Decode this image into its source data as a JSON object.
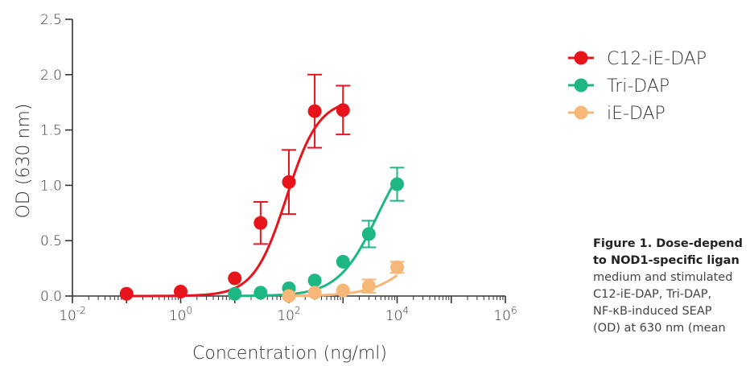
{
  "chart_data": {
    "type": "scatter",
    "xlabel": "Concentration (ng/ml)",
    "ylabel": "OD (630 nm)",
    "xscale": "log",
    "xlim": [
      0.01,
      1000000
    ],
    "ylim": [
      0,
      2.5
    ],
    "x_ticks": [
      {
        "base": "10",
        "exp": "-2"
      },
      {
        "base": "10",
        "exp": "0"
      },
      {
        "base": "10",
        "exp": "2"
      },
      {
        "base": "10",
        "exp": "4"
      },
      {
        "base": "10",
        "exp": "6"
      }
    ],
    "y_ticks": [
      "0.0",
      "0.5",
      "1.0",
      "1.5",
      "2.0",
      "2.5"
    ],
    "grid": false,
    "legend_position": "right",
    "series": [
      {
        "name": "C12-iE-DAP",
        "color": "#e8141c",
        "x": [
          0.1,
          1,
          10,
          30,
          100,
          300,
          1000
        ],
        "y": [
          0.02,
          0.04,
          0.16,
          0.66,
          1.03,
          1.67,
          1.68
        ],
        "err": [
          0,
          0,
          0,
          0.19,
          0.29,
          0.33,
          0.22
        ],
        "fit": {
          "bottom": 0.0,
          "top": 1.78,
          "ec50": 90,
          "hill": 1.45
        }
      },
      {
        "name": "Tri-DAP",
        "color": "#1db784",
        "x": [
          10,
          30,
          100,
          300,
          1000,
          3000,
          10000
        ],
        "y": [
          0.02,
          0.03,
          0.07,
          0.14,
          0.31,
          0.56,
          1.01
        ],
        "err": [
          0,
          0,
          0,
          0,
          0,
          0.12,
          0.15
        ],
        "fit": {
          "bottom": 0.0,
          "top": 1.45,
          "ec50": 4300,
          "hill": 1.2
        }
      },
      {
        "name": "iE-DAP",
        "color": "#f6b778",
        "x": [
          100,
          300,
          1000,
          3000,
          10000
        ],
        "y": [
          0.0,
          0.03,
          0.05,
          0.09,
          0.26
        ],
        "err": [
          0,
          0,
          0,
          0.06,
          0.05
        ],
        "fit": {
          "bottom": 0.0,
          "top": 0.7,
          "ec50": 25000,
          "hill": 1.1
        }
      }
    ]
  },
  "caption": {
    "title_line1": "Figure 1. Dose-depend",
    "title_line2": "to NOD1-specific ligan",
    "body_lines": [
      "medium and stimulated",
      "C12-iE-DAP, Tri-DAP,",
      "NF-κB-induced SEAP",
      "(OD) at 630 nm (mean"
    ]
  }
}
